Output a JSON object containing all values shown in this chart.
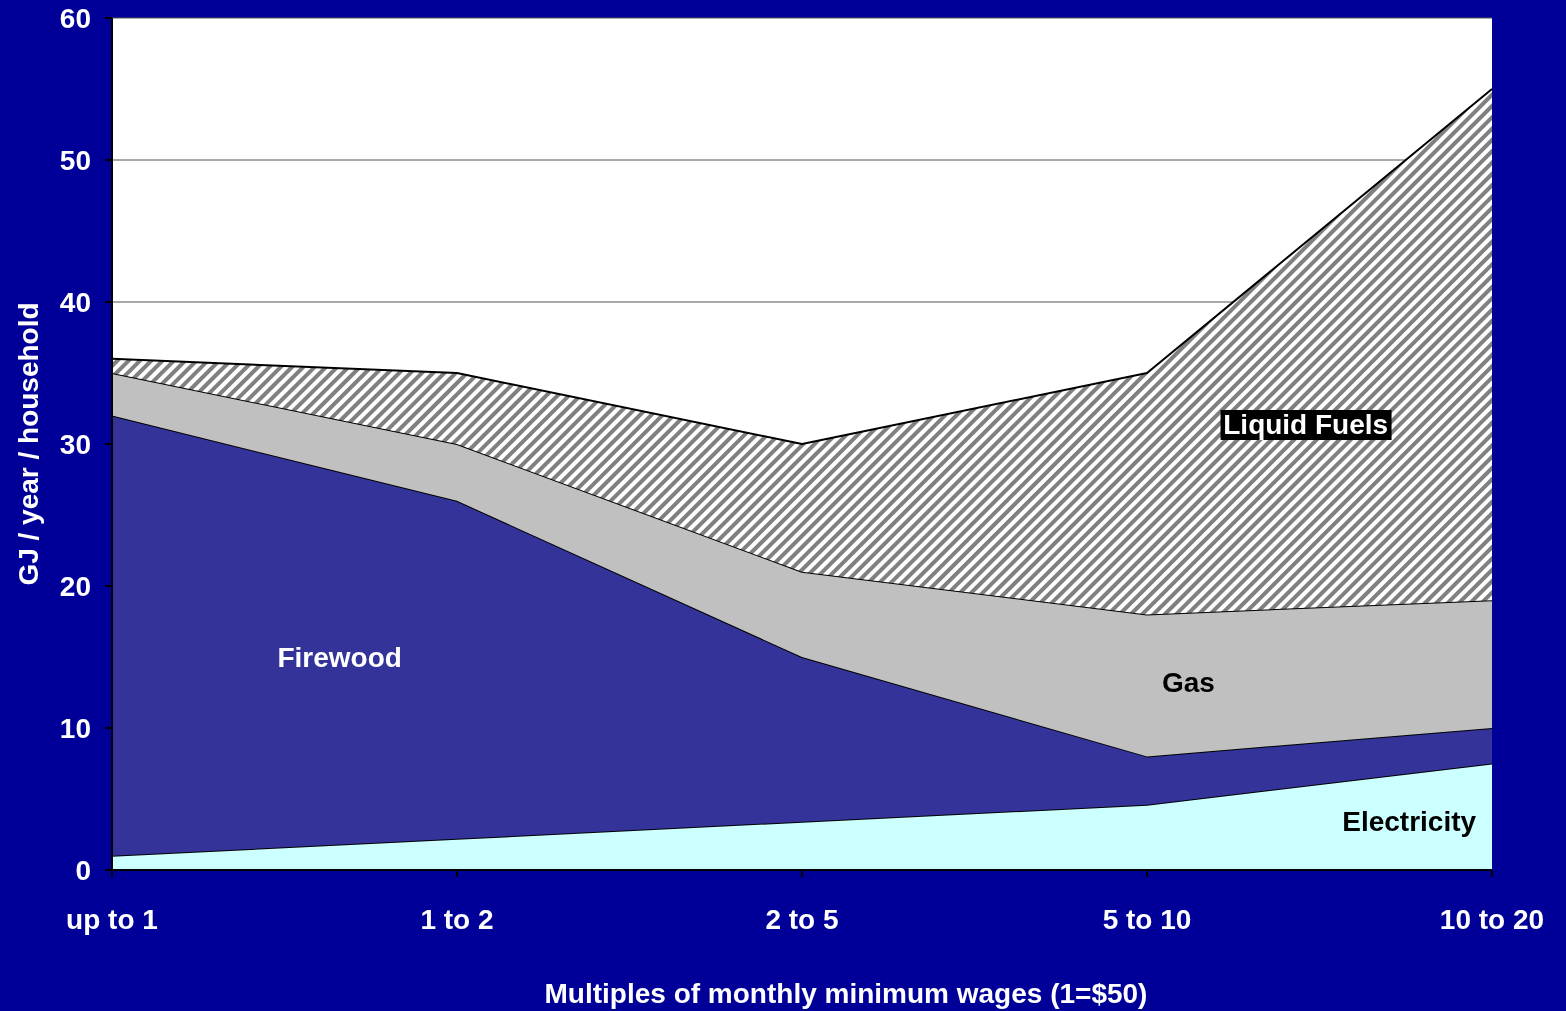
{
  "chart_data": {
    "type": "area",
    "stacked": true,
    "xlabel": "Multiples of monthly minimum wages (1=$50)",
    "ylabel": "GJ / year / household",
    "categories": [
      "up to 1",
      "1 to 2",
      "2 to 5",
      "5 to 10",
      "10 to 20"
    ],
    "series": [
      {
        "name": "Electricity",
        "color": "#ccffff",
        "values": [
          1,
          2.2,
          3.4,
          4.6,
          7.5
        ]
      },
      {
        "name": "Firewood",
        "color": "#333399",
        "values": [
          31,
          23.8,
          11.6,
          3.4,
          2.5
        ]
      },
      {
        "name": "Gas",
        "color": "#c0c0c0",
        "values": [
          3,
          4,
          6,
          10,
          9
        ]
      },
      {
        "name": "Liquid Fuels",
        "color": "#808080",
        "values": [
          1,
          5,
          9,
          17,
          36
        ]
      }
    ],
    "ylim": [
      0,
      60
    ],
    "yticks": [
      0,
      10,
      20,
      30,
      40,
      50,
      60
    ],
    "grid": "y",
    "legend": false
  }
}
